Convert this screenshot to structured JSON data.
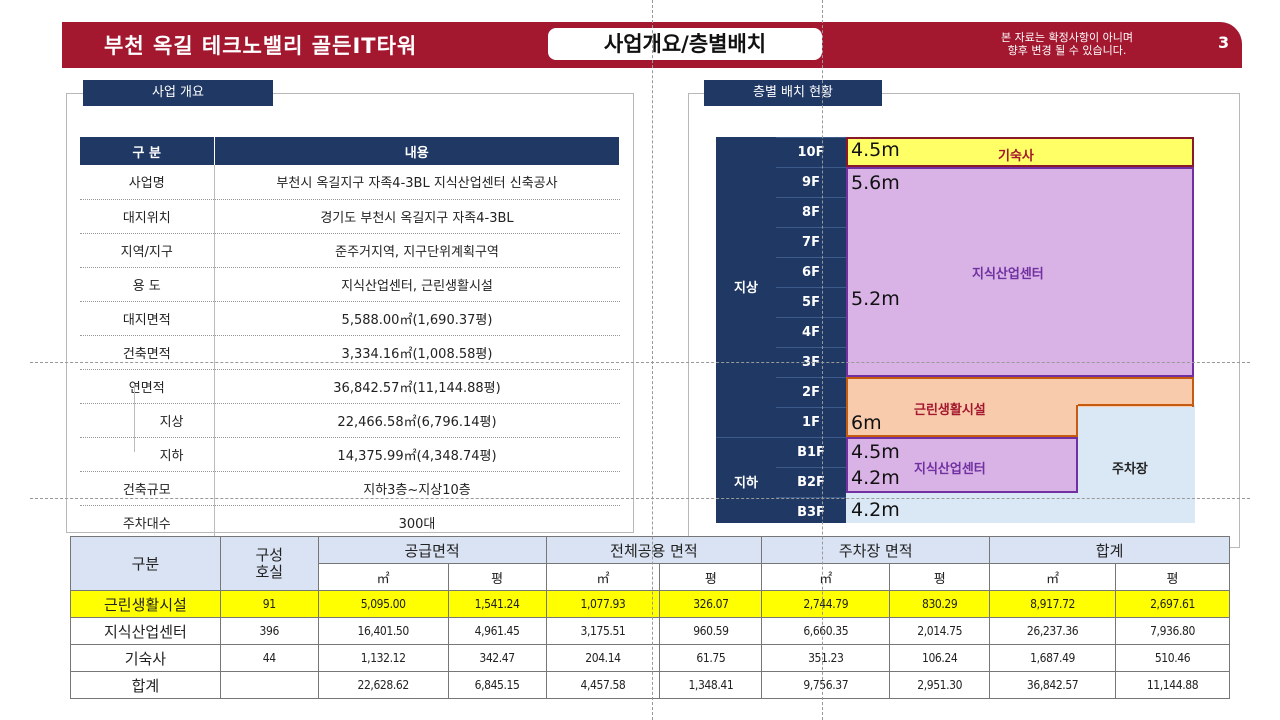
{
  "header": {
    "title": "부천 옥길 테크노밸리 골든IT타워",
    "subtitle": "사업개요/층별배치",
    "note_line1": "본 자료는 확정사항이 아니며",
    "note_line2": "향후 변경 될 수 있습니다.",
    "page_number": "3"
  },
  "overview": {
    "section_label": "사업 개요",
    "col_headers": [
      "구 분",
      "내용"
    ],
    "rows": [
      {
        "key": "사업명",
        "value": "부천시 옥길지구 자족4-3BL 지식산업센터 신축공사"
      },
      {
        "key": "대지위치",
        "value": "경기도 부천시 옥길지구 자족4-3BL"
      },
      {
        "key": "지역/지구",
        "value": "준주거지역, 지구단위계획구역"
      },
      {
        "key": "용 도",
        "value": "지식산업센터, 근린생활시설"
      },
      {
        "key": "대지면적",
        "value": "5,588.00㎡(1,690.37평)"
      },
      {
        "key": "건축면적",
        "value": "3,334.16㎡(1,008.58평)"
      },
      {
        "key": "연면적",
        "value": "36,842.57㎡(11,144.88평)"
      },
      {
        "key": "지상",
        "value": "22,466.58㎡(6,796.14평)"
      },
      {
        "key": "지하",
        "value": "14,375.99㎡(4,348.74평)"
      },
      {
        "key": "건축규모",
        "value": "지하3층~지상10층"
      },
      {
        "key": "주차대수",
        "value": "300대"
      }
    ]
  },
  "floors": {
    "section_label": "층별 배치 현황",
    "above_label": "지상",
    "below_label": "지하",
    "above": [
      "10F",
      "9F",
      "8F",
      "7F",
      "6F",
      "5F",
      "4F",
      "3F",
      "2F",
      "1F"
    ],
    "below": [
      "B1F",
      "B2F",
      "B3F"
    ],
    "blocks": {
      "dormitory": "기숙사",
      "knowledge_center": "지식산업센터",
      "retail": "근린생활시설",
      "knowledge_center_b1": "지식산업센터",
      "parking": "주차장"
    },
    "heights": {
      "f10": "4.5m",
      "f9": "5.6m",
      "f5": "5.2m",
      "f1": "6m",
      "b1": "4.5m",
      "b2": "4.2m",
      "b3": "4.2m"
    }
  },
  "area_table": {
    "headers": {
      "category": "구분",
      "units": "구성\n호실",
      "supply": "공급면적",
      "common": "전체공용 면적",
      "parking": "주차장 면적",
      "total": "합계"
    },
    "sub": {
      "sqm": "㎡",
      "py": "평"
    },
    "rows": [
      {
        "name": "근린생활시설",
        "units": "91",
        "supply_sqm": "5,095.00",
        "supply_py": "1,541.24",
        "common_sqm": "1,077.93",
        "common_py": "326.07",
        "parking_sqm": "2,744.79",
        "parking_py": "830.29",
        "total_sqm": "8,917.72",
        "total_py": "2,697.61"
      },
      {
        "name": "지식산업센터",
        "units": "396",
        "supply_sqm": "16,401.50",
        "supply_py": "4,961.45",
        "common_sqm": "3,175.51",
        "common_py": "960.59",
        "parking_sqm": "6,660.35",
        "parking_py": "2,014.75",
        "total_sqm": "26,237.36",
        "total_py": "7,936.80"
      },
      {
        "name": "기숙사",
        "units": "44",
        "supply_sqm": "1,132.12",
        "supply_py": "342.47",
        "common_sqm": "204.14",
        "common_py": "61.75",
        "parking_sqm": "351.23",
        "parking_py": "106.24",
        "total_sqm": "1,687.49",
        "total_py": "510.46"
      },
      {
        "name": "합계",
        "units": "",
        "supply_sqm": "22,628.62",
        "supply_py": "6,845.15",
        "common_sqm": "4,457.58",
        "common_py": "1,348.41",
        "parking_sqm": "9,756.37",
        "parking_py": "2,951.30",
        "total_sqm": "36,842.57",
        "total_py": "11,144.88"
      }
    ]
  },
  "colors": {
    "brand": "#a3172f",
    "navy": "#1f3864",
    "dormitory": "#ffff66",
    "knowledge_center": "#d9b3e6",
    "retail": "#f8cbad",
    "parking": "#dae8f5",
    "highlight": "#ffff00"
  }
}
